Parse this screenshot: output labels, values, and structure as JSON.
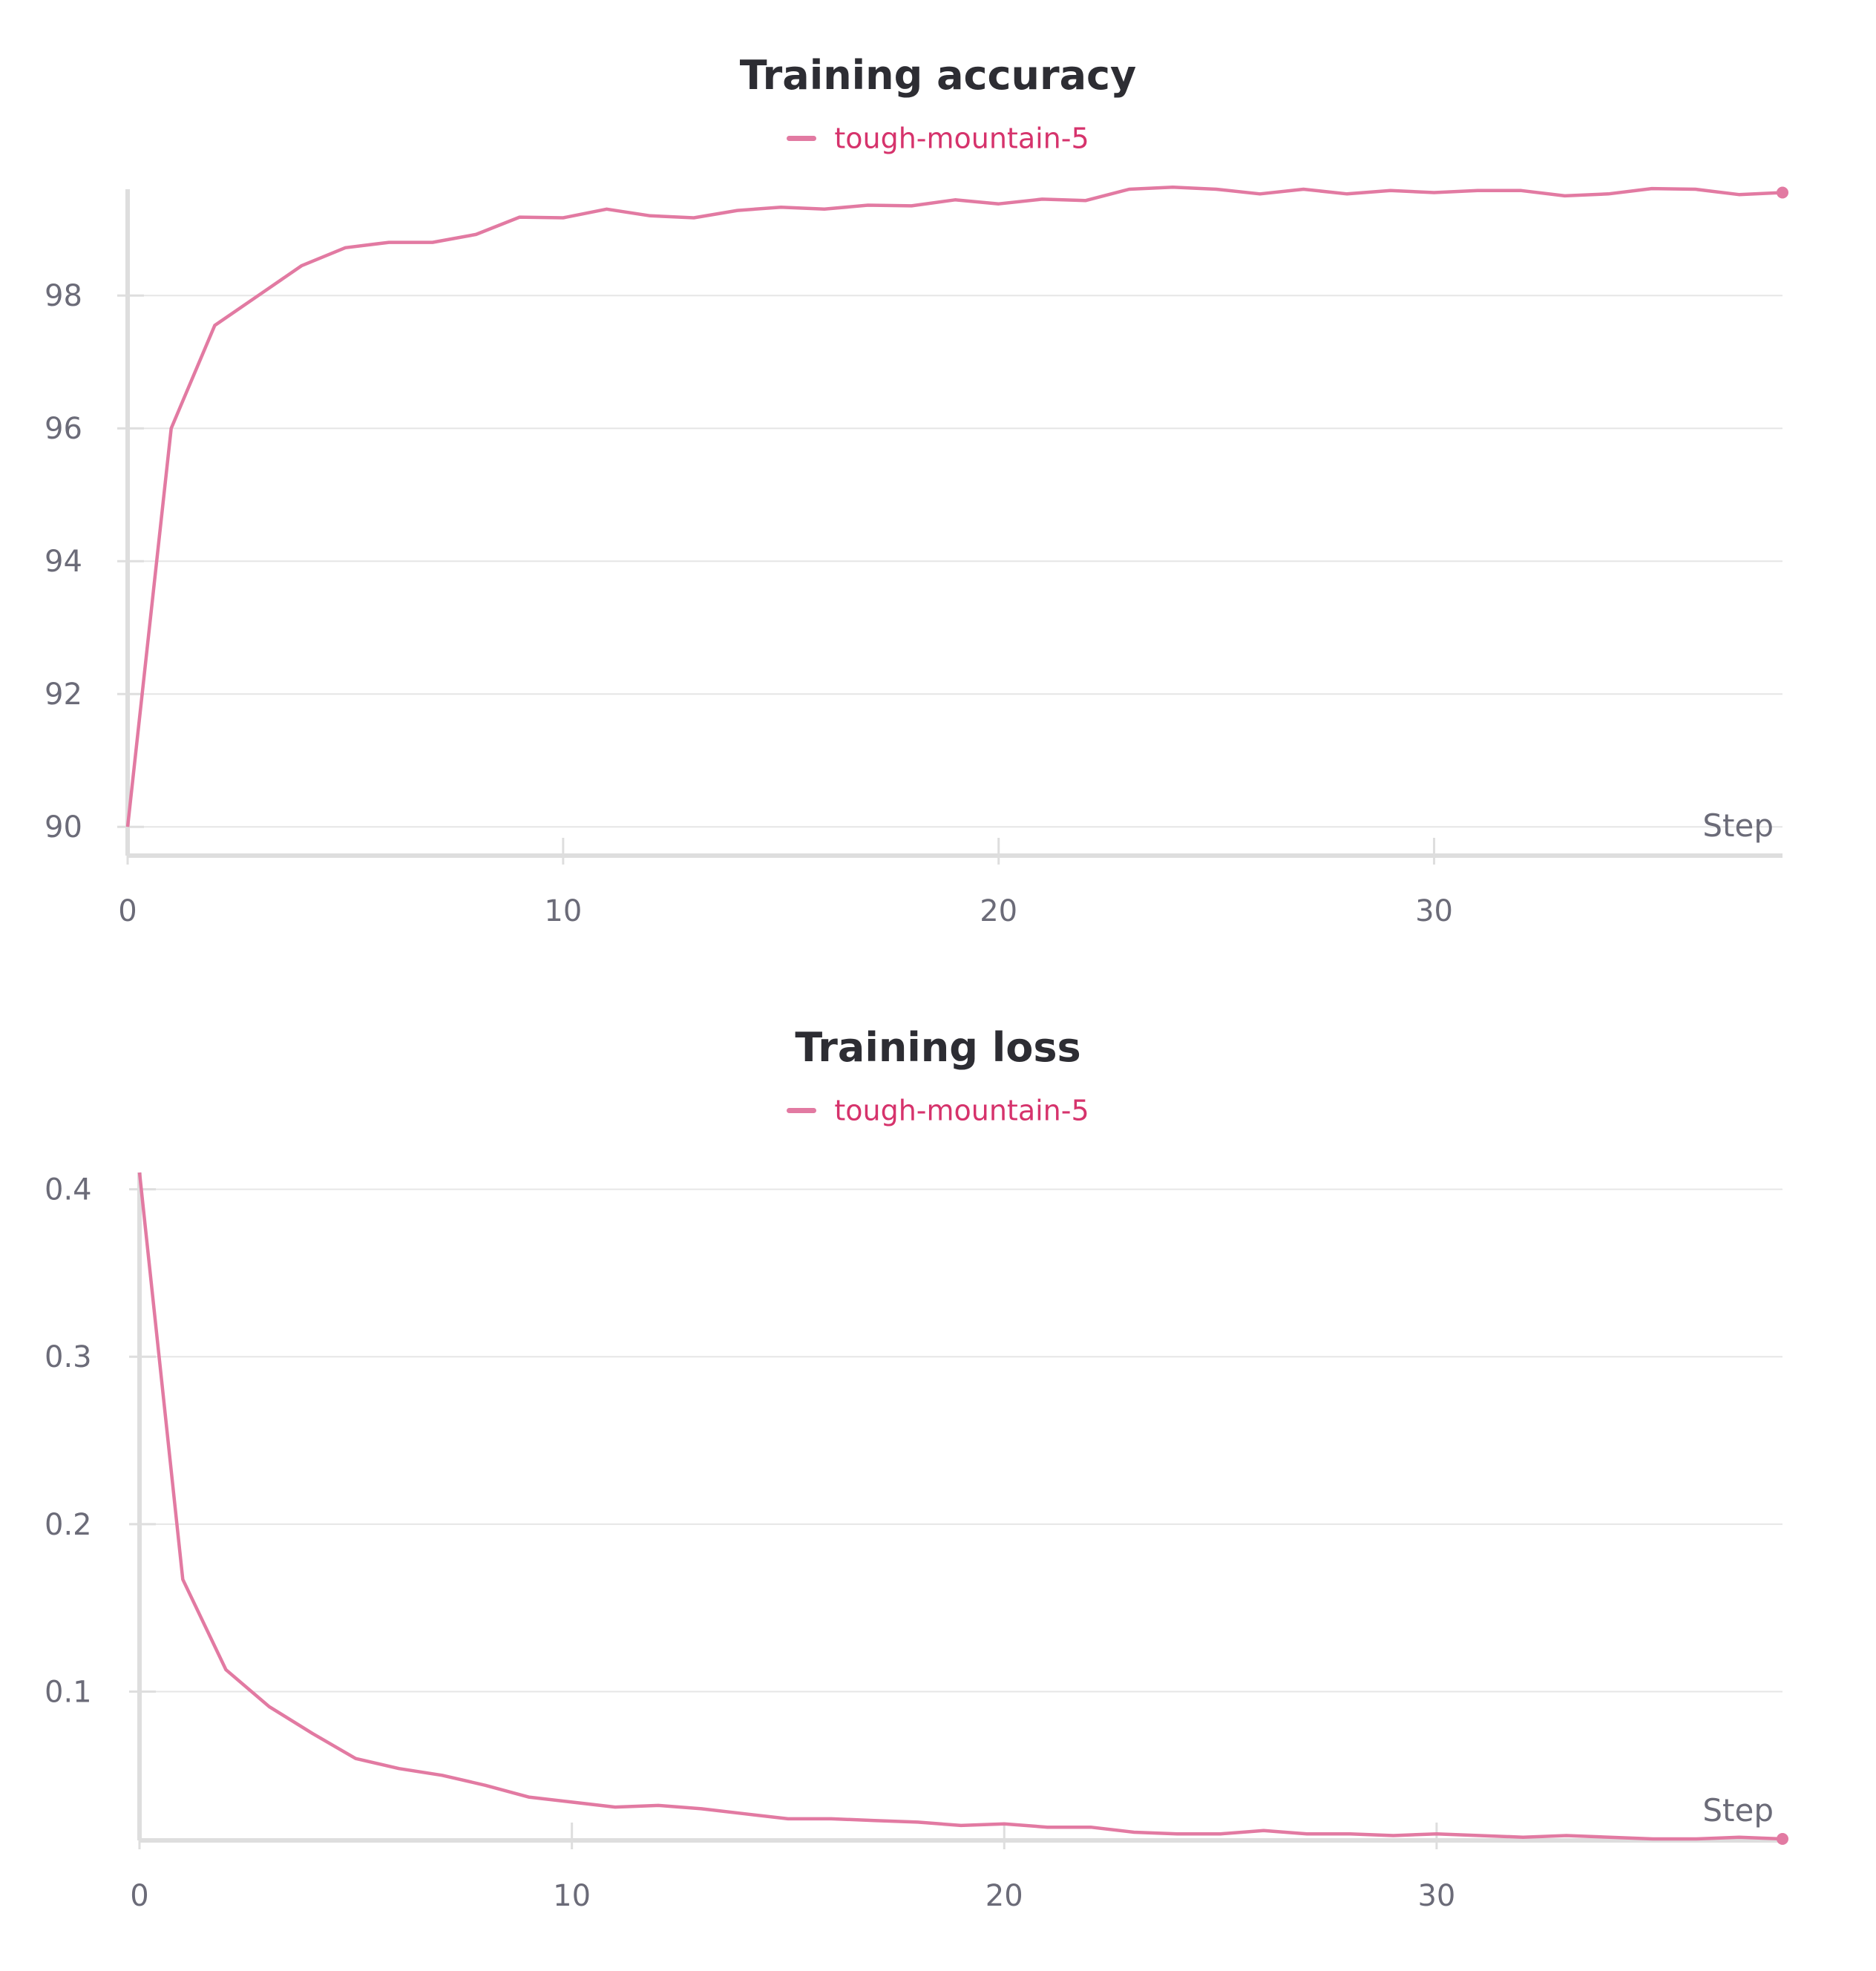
{
  "colors": {
    "series": "#e27aa2",
    "legend_text": "#d6336c",
    "grid": "#e6e6e6",
    "axis": "#dedede"
  },
  "chart_data": [
    {
      "type": "line",
      "title": "Training accuracy",
      "xlabel": "Step",
      "ylabel": "",
      "xlim": [
        0,
        38
      ],
      "ylim": [
        89.6,
        99.6
      ],
      "xticks": [
        0,
        10,
        20,
        30
      ],
      "yticks": [
        90,
        92,
        94,
        96,
        98
      ],
      "grid": true,
      "legend": "top-center",
      "series": [
        {
          "name": "tough-mountain-5",
          "x": [
            0,
            1,
            2,
            3,
            4,
            5,
            6,
            7,
            8,
            9,
            10,
            11,
            12,
            13,
            14,
            15,
            16,
            17,
            18,
            19,
            20,
            21,
            22,
            23,
            24,
            25,
            26,
            27,
            28,
            29,
            30,
            31,
            32,
            33,
            34,
            35,
            36,
            37,
            38
          ],
          "values": [
            90.0,
            96.0,
            97.55,
            98.0,
            98.45,
            98.72,
            98.8,
            98.8,
            98.92,
            99.18,
            99.17,
            99.3,
            99.2,
            99.17,
            99.28,
            99.33,
            99.3,
            99.36,
            99.35,
            99.44,
            99.38,
            99.45,
            99.43,
            99.6,
            99.63,
            99.6,
            99.53,
            99.6,
            99.53,
            99.58,
            99.55,
            99.58,
            99.58,
            99.5,
            99.53,
            99.61,
            99.6,
            99.52,
            99.55
          ]
        }
      ]
    },
    {
      "type": "line",
      "title": "Training loss",
      "xlabel": "Step",
      "ylabel": "",
      "xlim": [
        0,
        38
      ],
      "ylim": [
        0.012,
        0.41
      ],
      "xticks": [
        0,
        10,
        20,
        30
      ],
      "yticks": [
        0.1,
        0.2,
        0.3,
        0.4
      ],
      "grid": true,
      "legend": "top-center",
      "series": [
        {
          "name": "tough-mountain-5",
          "x": [
            0,
            1,
            2,
            3,
            4,
            5,
            6,
            7,
            8,
            9,
            10,
            11,
            12,
            13,
            14,
            15,
            16,
            17,
            18,
            19,
            20,
            21,
            22,
            23,
            24,
            25,
            26,
            27,
            28,
            29,
            30,
            31,
            32,
            33,
            34,
            35,
            36,
            37,
            38
          ],
          "values": [
            0.41,
            0.167,
            0.113,
            0.091,
            0.075,
            0.06,
            0.054,
            0.05,
            0.044,
            0.037,
            0.034,
            0.031,
            0.032,
            0.03,
            0.027,
            0.024,
            0.024,
            0.023,
            0.022,
            0.02,
            0.021,
            0.019,
            0.019,
            0.016,
            0.015,
            0.015,
            0.017,
            0.015,
            0.015,
            0.014,
            0.015,
            0.014,
            0.013,
            0.014,
            0.013,
            0.012,
            0.012,
            0.013,
            0.012
          ]
        }
      ]
    }
  ]
}
